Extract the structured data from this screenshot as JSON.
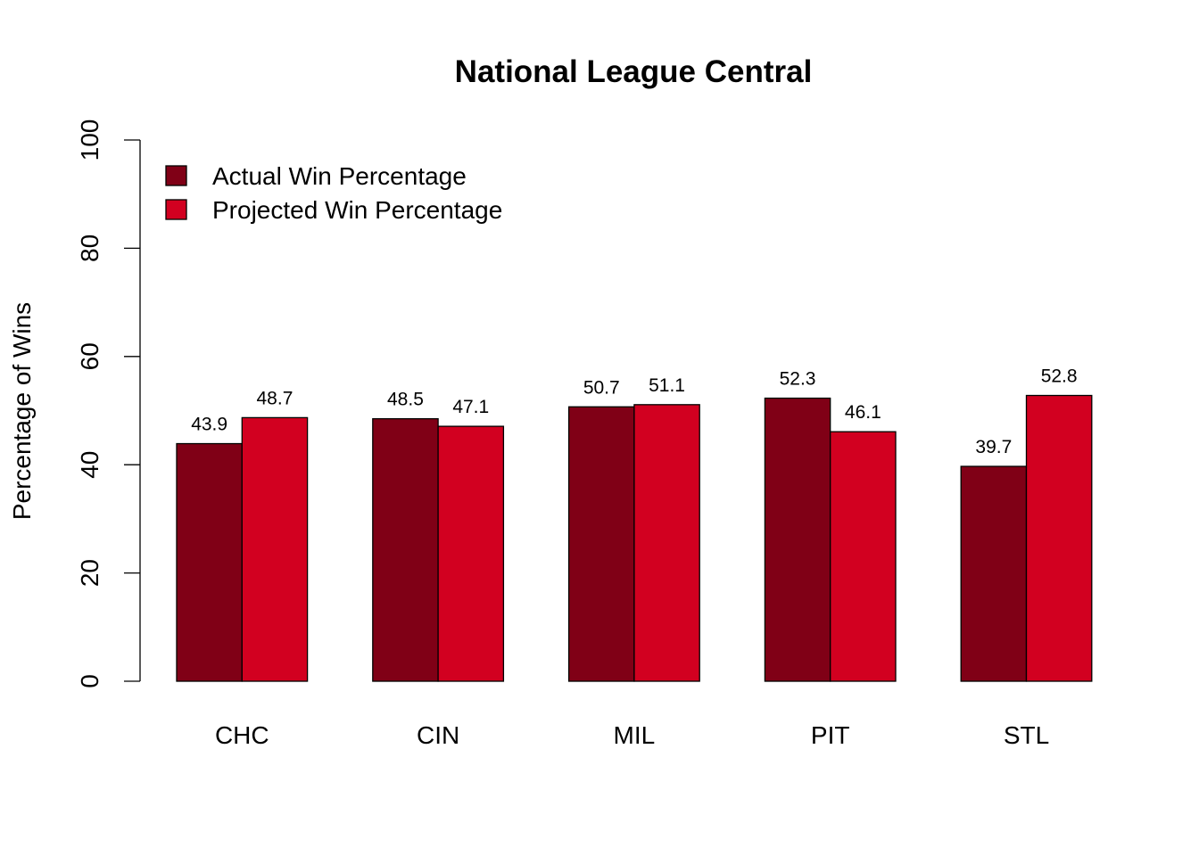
{
  "chart_data": {
    "type": "bar",
    "title": "National League Central",
    "xlabel": "",
    "ylabel": "Percentage of Wins",
    "ylim": [
      0,
      100
    ],
    "yticks": [
      0,
      20,
      40,
      60,
      80,
      100
    ],
    "grid": false,
    "legend_position": "top-left",
    "categories": [
      "CHC",
      "CIN",
      "MIL",
      "PIT",
      "STL"
    ],
    "series": [
      {
        "name": "Actual Win Percentage",
        "color": "#800016",
        "values": [
          43.9,
          48.5,
          50.7,
          52.3,
          39.7
        ],
        "labels": [
          "43.9",
          "48.5",
          "50.7",
          "52.3",
          "39.7"
        ]
      },
      {
        "name": "Projected Win Percentage",
        "color": "#d20020",
        "values": [
          48.7,
          47.1,
          51.1,
          46.1,
          52.8
        ],
        "labels": [
          "48.7",
          "47.1",
          "51.1",
          "46.1",
          "52.8"
        ]
      }
    ]
  }
}
